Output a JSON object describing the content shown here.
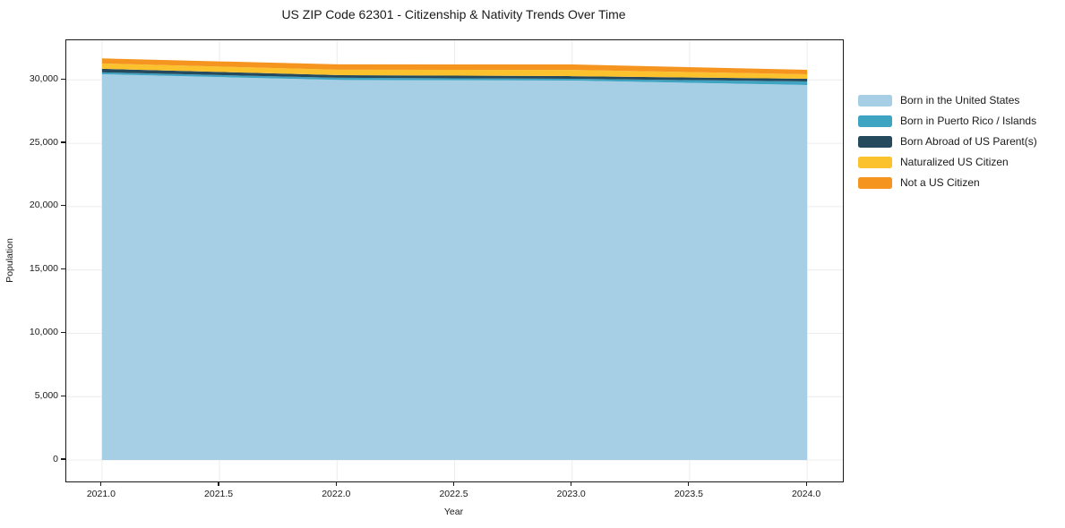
{
  "chart_data": {
    "type": "area",
    "stacked": true,
    "title": "US ZIP Code 62301 - Citizenship & Nativity Trends Over Time",
    "xlabel": "Year",
    "ylabel": "Population",
    "x": [
      2021,
      2022,
      2023,
      2024
    ],
    "series": [
      {
        "name": "Born in the United States",
        "color": "#a6cfe5",
        "values": [
          30450,
          30000,
          29950,
          29600
        ]
      },
      {
        "name": "Born in Puerto Rico / Islands",
        "color": "#3fa3c2",
        "values": [
          150,
          170,
          140,
          280
        ]
      },
      {
        "name": "Born Abroad of US Parent(s)",
        "color": "#264a5d",
        "values": [
          280,
          210,
          210,
          210
        ]
      },
      {
        "name": "Naturalized US Citizen",
        "color": "#fcc22e",
        "values": [
          420,
          430,
          490,
          360
        ]
      },
      {
        "name": "Not a US Citizen",
        "color": "#f5941f",
        "values": [
          400,
          420,
          430,
          350
        ]
      }
    ],
    "xlim": [
      2020.848,
      2024.152
    ],
    "ylim": [
      -1695,
      33130
    ],
    "x_ticks": [
      {
        "v": 2021.0,
        "label": "2021.0"
      },
      {
        "v": 2021.5,
        "label": "2021.5"
      },
      {
        "v": 2022.0,
        "label": "2022.0"
      },
      {
        "v": 2022.5,
        "label": "2022.5"
      },
      {
        "v": 2023.0,
        "label": "2023.0"
      },
      {
        "v": 2023.5,
        "label": "2023.5"
      },
      {
        "v": 2024.0,
        "label": "2024.0"
      }
    ],
    "y_ticks": [
      {
        "v": 0,
        "label": "0"
      },
      {
        "v": 5000,
        "label": "5,000"
      },
      {
        "v": 10000,
        "label": "10,000"
      },
      {
        "v": 15000,
        "label": "15,000"
      },
      {
        "v": 20000,
        "label": "20,000"
      },
      {
        "v": 25000,
        "label": "25,000"
      },
      {
        "v": 30000,
        "label": "30,000"
      }
    ],
    "grid": true,
    "grid_color": "#ececec",
    "legend_position": "right-outside",
    "spine_color": "#1a1a1a"
  }
}
